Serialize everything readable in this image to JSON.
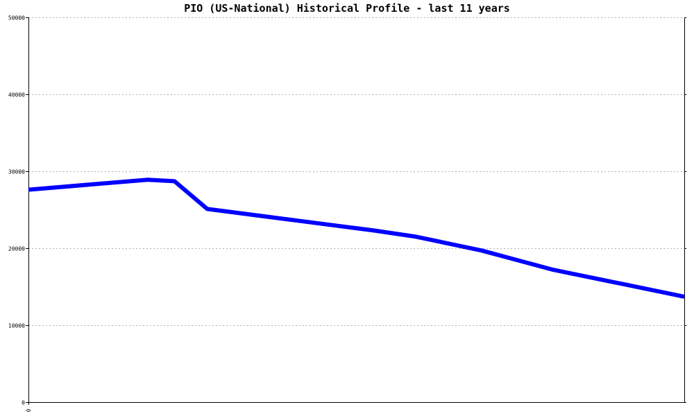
{
  "chart_data": {
    "type": "line",
    "title": "PIO (US-National) Historical Profile - last 11 years",
    "xlabel": "",
    "ylabel": "",
    "xlim": [
      0,
      11
    ],
    "ylim": [
      0,
      50000
    ],
    "yticks": [
      0,
      10000,
      20000,
      30000,
      40000,
      50000
    ],
    "ytick_labels": [
      "0",
      "10000",
      "20000",
      "30000",
      "40000",
      "50000"
    ],
    "xtick_labels": [
      "0"
    ],
    "grid": true,
    "legend": "none",
    "series": [
      {
        "color": "#0000ff",
        "x": [
          0,
          2.0,
          2.45,
          3.0,
          4.6,
          5.8,
          6.5,
          7.6,
          8.8,
          10.0,
          11.0
        ],
        "y": [
          27600,
          28900,
          28700,
          25100,
          23500,
          22300,
          21500,
          19700,
          17200,
          15300,
          13700
        ]
      }
    ]
  }
}
